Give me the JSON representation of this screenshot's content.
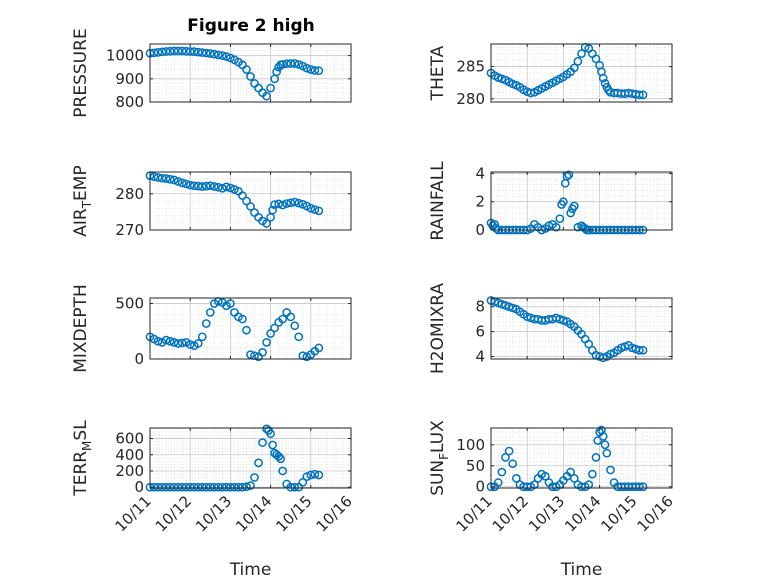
{
  "figure": {
    "title": "Figure 2 high"
  },
  "chart_data": [
    {
      "type": "scatter",
      "name": "pressure",
      "ylabel": "PRESSURE",
      "xlabel": "",
      "xlim": [
        0,
        5
      ],
      "ylim": [
        800,
        1050
      ],
      "yticks": [
        800,
        900,
        1000
      ],
      "ytick_labels": [
        "800",
        "900",
        "1000"
      ],
      "xticks": [
        0,
        1,
        2,
        3,
        4,
        5
      ],
      "xtick_labels": [],
      "grid": true,
      "x": [
        0.0,
        0.1,
        0.2,
        0.3,
        0.4,
        0.5,
        0.6,
        0.7,
        0.8,
        0.9,
        1.0,
        1.1,
        1.2,
        1.3,
        1.4,
        1.5,
        1.6,
        1.7,
        1.8,
        1.9,
        2.0,
        2.1,
        2.2,
        2.3,
        2.4,
        2.5,
        2.6,
        2.7,
        2.8,
        2.9,
        3.0,
        3.1,
        3.15,
        3.2,
        3.25,
        3.3,
        3.4,
        3.5,
        3.6,
        3.7,
        3.8,
        3.9,
        4.0,
        4.1,
        4.2
      ],
      "y": [
        1010,
        1012,
        1014,
        1016,
        1018,
        1019,
        1020,
        1020,
        1020,
        1019,
        1018,
        1017,
        1015,
        1013,
        1011,
        1009,
        1006,
        1003,
        1000,
        996,
        990,
        982,
        972,
        960,
        940,
        910,
        880,
        860,
        840,
        825,
        860,
        900,
        930,
        950,
        960,
        962,
        965,
        966,
        966,
        962,
        955,
        946,
        940,
        936,
        935
      ]
    },
    {
      "type": "scatter",
      "name": "theta",
      "ylabel": "THETA",
      "xlabel": "",
      "xlim": [
        0,
        5
      ],
      "ylim": [
        279.5,
        288.5
      ],
      "yticks": [
        280,
        285
      ],
      "ytick_labels": [
        "280",
        "285"
      ],
      "xticks": [
        0,
        1,
        2,
        3,
        4,
        5
      ],
      "xtick_labels": [],
      "grid": true,
      "x": [
        0.0,
        0.1,
        0.2,
        0.3,
        0.4,
        0.5,
        0.6,
        0.7,
        0.8,
        0.9,
        1.0,
        1.1,
        1.2,
        1.3,
        1.4,
        1.5,
        1.6,
        1.7,
        1.8,
        1.9,
        2.0,
        2.1,
        2.2,
        2.3,
        2.4,
        2.5,
        2.6,
        2.7,
        2.8,
        2.9,
        3.0,
        3.05,
        3.1,
        3.15,
        3.2,
        3.25,
        3.3,
        3.4,
        3.5,
        3.6,
        3.7,
        3.8,
        3.9,
        4.0,
        4.1,
        4.2
      ],
      "y": [
        284,
        283.6,
        283.3,
        283.1,
        282.9,
        282.6,
        282.3,
        282.1,
        281.8,
        281.4,
        281.1,
        280.9,
        281.0,
        281.3,
        281.6,
        281.9,
        282.2,
        282.5,
        282.8,
        283.1,
        283.4,
        283.8,
        284.2,
        284.8,
        285.8,
        287.0,
        288.0,
        287.8,
        287.0,
        286.2,
        285.2,
        284.2,
        283.2,
        282.4,
        281.8,
        281.3,
        281.0,
        280.9,
        280.9,
        280.8,
        280.8,
        280.9,
        280.8,
        280.7,
        280.6,
        280.6
      ]
    },
    {
      "type": "scatter",
      "name": "air_temp",
      "ylabel": "AIR_TEMP",
      "xlabel": "",
      "xlim": [
        0,
        5
      ],
      "ylim": [
        270,
        286
      ],
      "yticks": [
        270,
        280
      ],
      "ytick_labels": [
        "270",
        "280"
      ],
      "xticks": [
        0,
        1,
        2,
        3,
        4,
        5
      ],
      "xtick_labels": [],
      "grid": true,
      "x": [
        0.0,
        0.1,
        0.2,
        0.3,
        0.4,
        0.5,
        0.6,
        0.7,
        0.8,
        0.9,
        1.0,
        1.1,
        1.2,
        1.3,
        1.4,
        1.5,
        1.6,
        1.7,
        1.8,
        1.9,
        2.0,
        2.1,
        2.2,
        2.3,
        2.4,
        2.5,
        2.6,
        2.7,
        2.8,
        2.9,
        3.0,
        3.05,
        3.1,
        3.2,
        3.3,
        3.4,
        3.5,
        3.6,
        3.7,
        3.8,
        3.9,
        4.0,
        4.1,
        4.2
      ],
      "y": [
        285.0,
        284.7,
        284.5,
        284.3,
        284.2,
        284.0,
        283.8,
        283.4,
        283.0,
        282.7,
        282.4,
        282.2,
        282.1,
        282.0,
        282.1,
        282.2,
        282.0,
        281.8,
        281.5,
        281.9,
        281.6,
        281.2,
        280.7,
        279.5,
        278.0,
        276.5,
        274.8,
        273.5,
        272.5,
        271.8,
        273.5,
        275.5,
        277.0,
        277.2,
        276.9,
        277.3,
        277.5,
        277.7,
        277.4,
        277.1,
        276.6,
        276.0,
        275.6,
        275.3
      ]
    },
    {
      "type": "scatter",
      "name": "rainfall",
      "ylabel": "RAINFALL",
      "xlabel": "",
      "xlim": [
        0,
        5
      ],
      "ylim": [
        0,
        4.1
      ],
      "yticks": [
        0,
        2,
        4
      ],
      "ytick_labels": [
        "0",
        "2",
        "4"
      ],
      "xticks": [
        0,
        1,
        2,
        3,
        4,
        5
      ],
      "xtick_labels": [],
      "grid": true,
      "x": [
        0.0,
        0.05,
        0.1,
        0.15,
        0.2,
        0.3,
        0.4,
        0.5,
        0.6,
        0.7,
        0.8,
        0.9,
        1.0,
        1.1,
        1.2,
        1.3,
        1.4,
        1.5,
        1.6,
        1.7,
        1.8,
        1.9,
        1.95,
        2.0,
        2.05,
        2.1,
        2.15,
        2.2,
        2.25,
        2.3,
        2.4,
        2.5,
        2.55,
        2.6,
        2.65,
        2.7,
        2.8,
        2.9,
        3.0,
        3.1,
        3.2,
        3.3,
        3.4,
        3.5,
        3.6,
        3.7,
        3.8,
        3.9,
        4.0,
        4.1,
        4.2
      ],
      "y": [
        0.5,
        0.3,
        0.4,
        0.1,
        0.0,
        0.0,
        0.0,
        0.0,
        0.0,
        0.0,
        0.0,
        0.0,
        0.0,
        0.1,
        0.4,
        0.2,
        0.0,
        0.1,
        0.3,
        0.4,
        0.2,
        0.8,
        1.8,
        2.0,
        3.3,
        3.8,
        3.9,
        1.2,
        1.5,
        1.7,
        0.2,
        0.3,
        0.2,
        0.1,
        0.0,
        0.0,
        0.0,
        0.0,
        0.0,
        0.0,
        0.0,
        0.0,
        0.0,
        0.0,
        0.0,
        0.0,
        0.0,
        0.0,
        0.0,
        0.0,
        0.0
      ]
    },
    {
      "type": "scatter",
      "name": "mixdepth",
      "ylabel": "MIXDEPTH",
      "xlabel": "",
      "xlim": [
        0,
        5
      ],
      "ylim": [
        0,
        550
      ],
      "yticks": [
        0,
        500
      ],
      "ytick_labels": [
        "0",
        "500"
      ],
      "xticks": [
        0,
        1,
        2,
        3,
        4,
        5
      ],
      "xtick_labels": [],
      "grid": true,
      "x": [
        0.0,
        0.1,
        0.2,
        0.3,
        0.4,
        0.5,
        0.6,
        0.7,
        0.8,
        0.9,
        1.0,
        1.1,
        1.2,
        1.3,
        1.4,
        1.5,
        1.6,
        1.7,
        1.8,
        1.9,
        2.0,
        2.1,
        2.2,
        2.3,
        2.4,
        2.5,
        2.6,
        2.7,
        2.8,
        2.9,
        3.0,
        3.1,
        3.2,
        3.3,
        3.4,
        3.5,
        3.6,
        3.7,
        3.8,
        3.9,
        4.0,
        4.1,
        4.2
      ],
      "y": [
        200,
        180,
        160,
        150,
        170,
        160,
        150,
        140,
        145,
        150,
        130,
        120,
        140,
        200,
        320,
        420,
        500,
        520,
        510,
        480,
        500,
        420,
        380,
        360,
        260,
        40,
        30,
        20,
        60,
        150,
        230,
        280,
        330,
        360,
        420,
        380,
        300,
        200,
        30,
        20,
        40,
        70,
        100
      ]
    },
    {
      "type": "scatter",
      "name": "h2omixra",
      "ylabel": "H2OMIXRA",
      "xlabel": "",
      "xlim": [
        0,
        5
      ],
      "ylim": [
        3.8,
        8.7
      ],
      "yticks": [
        4,
        6,
        8
      ],
      "ytick_labels": [
        "4",
        "6",
        "8"
      ],
      "xticks": [
        0,
        1,
        2,
        3,
        4,
        5
      ],
      "xtick_labels": [],
      "grid": true,
      "x": [
        0.0,
        0.1,
        0.2,
        0.3,
        0.4,
        0.5,
        0.6,
        0.7,
        0.8,
        0.9,
        1.0,
        1.1,
        1.2,
        1.3,
        1.4,
        1.5,
        1.6,
        1.7,
        1.8,
        1.9,
        2.0,
        2.1,
        2.2,
        2.3,
        2.4,
        2.5,
        2.6,
        2.7,
        2.8,
        2.9,
        3.0,
        3.1,
        3.2,
        3.3,
        3.4,
        3.5,
        3.6,
        3.7,
        3.8,
        3.9,
        4.0,
        4.1,
        4.2
      ],
      "y": [
        8.5,
        8.4,
        8.3,
        8.2,
        8.1,
        8.0,
        7.9,
        7.8,
        7.6,
        7.4,
        7.2,
        7.1,
        7.0,
        7.0,
        6.9,
        6.9,
        7.0,
        7.0,
        7.1,
        7.0,
        6.9,
        6.8,
        6.6,
        6.4,
        6.1,
        5.8,
        5.4,
        5.0,
        4.5,
        4.1,
        4.0,
        3.9,
        4.0,
        4.2,
        4.3,
        4.5,
        4.7,
        4.8,
        4.9,
        4.7,
        4.6,
        4.5,
        4.5
      ]
    },
    {
      "type": "scatter",
      "name": "terr_msl",
      "ylabel": "TERR_MSL",
      "xlabel": "Time",
      "xlim": [
        0,
        5
      ],
      "ylim": [
        -10,
        730
      ],
      "yticks": [
        0,
        200,
        400,
        600
      ],
      "ytick_labels": [
        "0",
        "200",
        "400",
        "600"
      ],
      "xticks": [
        0,
        1,
        2,
        3,
        4,
        5
      ],
      "xtick_labels": [
        "10/11",
        "10/12",
        "10/13",
        "10/14",
        "10/15",
        "10/16"
      ],
      "grid": true,
      "x": [
        0.0,
        0.1,
        0.2,
        0.3,
        0.4,
        0.5,
        0.6,
        0.7,
        0.8,
        0.9,
        1.0,
        1.1,
        1.2,
        1.3,
        1.4,
        1.5,
        1.6,
        1.7,
        1.8,
        1.9,
        2.0,
        2.1,
        2.2,
        2.3,
        2.4,
        2.5,
        2.6,
        2.7,
        2.8,
        2.9,
        2.95,
        3.0,
        3.05,
        3.1,
        3.15,
        3.2,
        3.25,
        3.3,
        3.4,
        3.5,
        3.6,
        3.7,
        3.8,
        3.9,
        4.0,
        4.1,
        4.2
      ],
      "y": [
        0,
        0,
        0,
        0,
        0,
        0,
        0,
        0,
        0,
        0,
        0,
        0,
        0,
        0,
        0,
        0,
        0,
        0,
        0,
        0,
        0,
        0,
        0,
        0,
        5,
        20,
        120,
        300,
        550,
        720,
        700,
        660,
        520,
        420,
        400,
        380,
        350,
        200,
        40,
        0,
        0,
        0,
        60,
        130,
        150,
        160,
        150
      ]
    },
    {
      "type": "scatter",
      "name": "sun_flux",
      "ylabel": "SUN_FLUX",
      "xlabel": "Time",
      "xlim": [
        0,
        5
      ],
      "ylim": [
        -3,
        140
      ],
      "yticks": [
        0,
        50,
        100
      ],
      "ytick_labels": [
        "0",
        "50",
        "100"
      ],
      "xticks": [
        0,
        1,
        2,
        3,
        4,
        5
      ],
      "xtick_labels": [
        "10/11",
        "10/12",
        "10/13",
        "10/14",
        "10/15",
        "10/16"
      ],
      "grid": true,
      "x": [
        0.0,
        0.1,
        0.2,
        0.3,
        0.4,
        0.5,
        0.6,
        0.7,
        0.8,
        0.9,
        1.0,
        1.1,
        1.2,
        1.3,
        1.4,
        1.5,
        1.6,
        1.7,
        1.8,
        1.9,
        2.0,
        2.1,
        2.2,
        2.3,
        2.4,
        2.5,
        2.6,
        2.7,
        2.8,
        2.9,
        2.95,
        3.0,
        3.05,
        3.1,
        3.15,
        3.2,
        3.3,
        3.4,
        3.5,
        3.6,
        3.7,
        3.8,
        3.9,
        4.0,
        4.1,
        4.2
      ],
      "y": [
        0,
        0,
        10,
        35,
        70,
        85,
        55,
        20,
        5,
        0,
        0,
        0,
        5,
        20,
        30,
        25,
        10,
        0,
        0,
        5,
        15,
        25,
        35,
        20,
        5,
        0,
        0,
        5,
        30,
        70,
        110,
        130,
        135,
        120,
        100,
        80,
        40,
        10,
        0,
        0,
        0,
        0,
        0,
        0,
        0,
        0
      ]
    }
  ]
}
